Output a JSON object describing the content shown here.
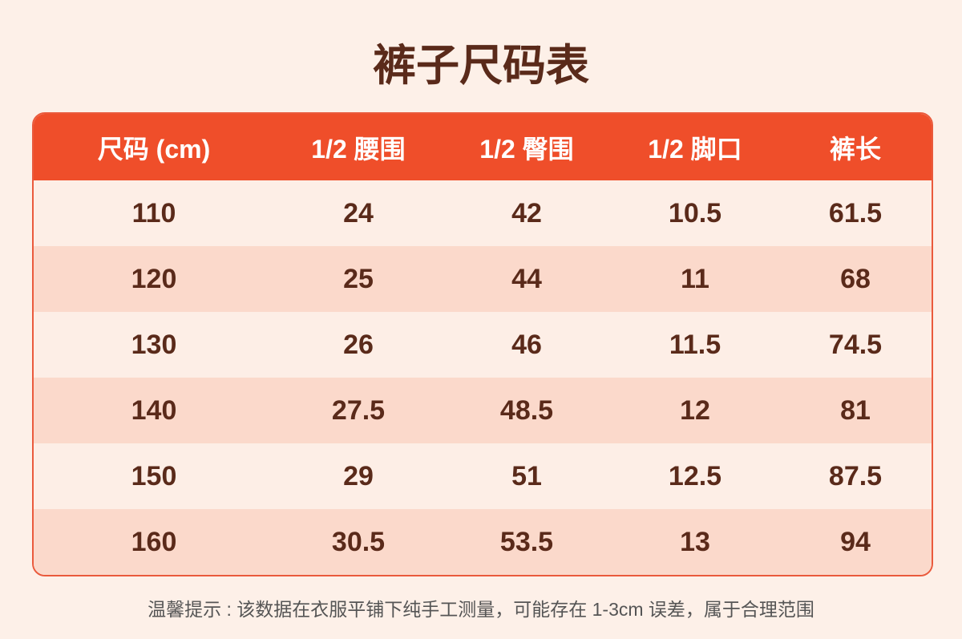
{
  "header": {
    "title": "裤子尺码表"
  },
  "table": {
    "columns": [
      "尺码 (cm)",
      "1/2 腰围",
      "1/2 臀围",
      "1/2 脚口",
      "裤长"
    ],
    "rows": [
      [
        "110",
        "24",
        "42",
        "10.5",
        "61.5"
      ],
      [
        "120",
        "25",
        "44",
        "11",
        "68"
      ],
      [
        "130",
        "26",
        "46",
        "11.5",
        "74.5"
      ],
      [
        "140",
        "27.5",
        "48.5",
        "12",
        "81"
      ],
      [
        "150",
        "29",
        "51",
        "12.5",
        "87.5"
      ],
      [
        "160",
        "30.5",
        "53.5",
        "13",
        "94"
      ]
    ]
  },
  "footer": {
    "note": "温馨提示 : 该数据在衣服平铺下纯手工测量，可能存在 1-3cm 误差，属于合理范围"
  }
}
